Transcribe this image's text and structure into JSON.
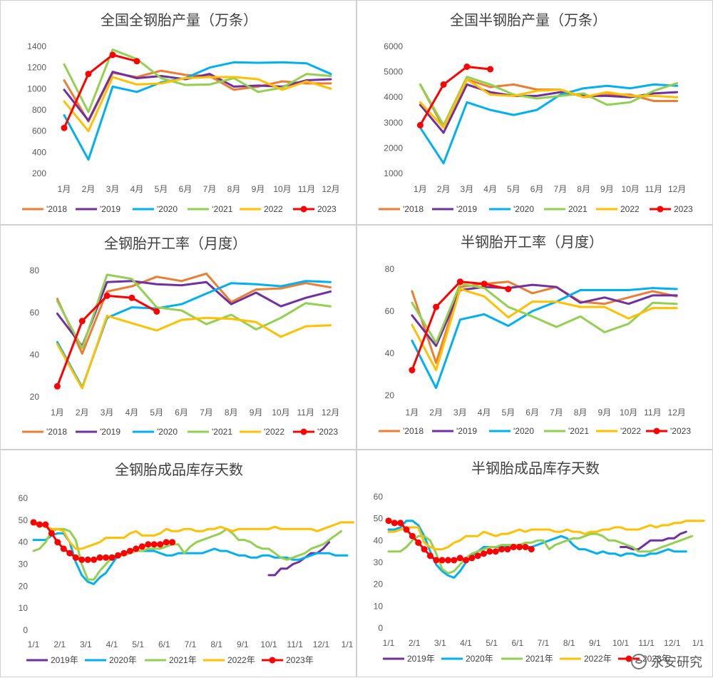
{
  "watermark": {
    "text": "永安研究",
    "icon": "wechat-icon"
  },
  "colors": {
    "2018": "#ED7D31",
    "2019": "#7030A0",
    "2020": "#00B0F0",
    "2021": "#92D050",
    "2022": "#FFC000",
    "2023": "#FF0000"
  },
  "chart_data": [
    {
      "id": "c1",
      "type": "line",
      "title": "全国全钢胎产量（万条）",
      "categories": [
        "1月",
        "2月",
        "3月",
        "4月",
        "5月",
        "6月",
        "7月",
        "8月",
        "9月",
        "10月",
        "11月",
        "12月"
      ],
      "ylim": [
        200,
        1400
      ],
      "yticks": [
        200,
        400,
        600,
        800,
        1000,
        1200,
        1400
      ],
      "legend_position": "bottom",
      "series": [
        {
          "name": "'2018",
          "key": "2018",
          "values": [
            1080,
            690,
            1150,
            1110,
            1170,
            1130,
            1120,
            990,
            1020,
            1070,
            1050,
            1050
          ]
        },
        {
          "name": "'2019",
          "key": "2019",
          "values": [
            990,
            700,
            1160,
            1100,
            1120,
            1090,
            1140,
            1020,
            1030,
            1020,
            1080,
            1090
          ]
        },
        {
          "name": "'2020",
          "key": "2020",
          "values": [
            750,
            330,
            1020,
            970,
            1060,
            1100,
            1200,
            1250,
            1245,
            1250,
            1240,
            1140
          ]
        },
        {
          "name": "‘2021",
          "key": "2021",
          "values": [
            1230,
            780,
            1370,
            1280,
            1100,
            1035,
            1040,
            1100,
            970,
            1010,
            1140,
            1120
          ]
        },
        {
          "name": "2022",
          "key": "2022",
          "values": [
            880,
            600,
            1110,
            1040,
            1050,
            1100,
            1110,
            1110,
            1090,
            990,
            1070,
            1000
          ]
        },
        {
          "name": "2023",
          "key": "2023",
          "markers": true,
          "values": [
            630,
            1140,
            1320,
            1260,
            null,
            null,
            null,
            null,
            null,
            null,
            null,
            null
          ]
        }
      ]
    },
    {
      "id": "c2",
      "type": "line",
      "title": "全国半钢胎产量（万条）",
      "categories": [
        "1月",
        "2月",
        "3月",
        "4月",
        "5月",
        "6月",
        "7月",
        "8月",
        "9月",
        "10月",
        "11月",
        "12月"
      ],
      "ylim": [
        1000,
        6000
      ],
      "yticks": [
        1000,
        2000,
        3000,
        4000,
        5000,
        6000
      ],
      "legend_position": "bottom",
      "series": [
        {
          "name": "'2018",
          "key": "2018",
          "values": [
            4500,
            2800,
            4700,
            4400,
            4500,
            4300,
            4300,
            4000,
            4100,
            4100,
            3850,
            3850
          ]
        },
        {
          "name": "'2019",
          "key": "2019",
          "values": [
            3700,
            2600,
            4500,
            4200,
            4050,
            4050,
            4200,
            4050,
            4050,
            4000,
            4150,
            4200
          ]
        },
        {
          "name": "'2020",
          "key": "2020",
          "values": [
            2800,
            1400,
            3800,
            3500,
            3300,
            3500,
            4100,
            4350,
            4450,
            4350,
            4500,
            4450
          ]
        },
        {
          "name": "2021",
          "key": "2021",
          "values": [
            4500,
            2900,
            4800,
            4500,
            4100,
            3950,
            4050,
            4150,
            3700,
            3800,
            4250,
            4550
          ]
        },
        {
          "name": "2022",
          "key": "2022",
          "values": [
            3800,
            2800,
            4700,
            4100,
            4050,
            4250,
            4300,
            4000,
            4200,
            4050,
            4050,
            4000
          ]
        },
        {
          "name": "2023",
          "key": "2023",
          "markers": true,
          "values": [
            2900,
            4500,
            5200,
            5100,
            null,
            null,
            null,
            null,
            null,
            null,
            null,
            null
          ]
        }
      ]
    },
    {
      "id": "c3",
      "type": "line",
      "title": "全钢胎开工率（月度）",
      "categories": [
        "1月",
        "2月",
        "3月",
        "4月",
        "5月",
        "6月",
        "7月",
        "8月",
        "9月",
        "10月",
        "11月",
        "12月"
      ],
      "ylim": [
        20,
        80
      ],
      "yticks": [
        20,
        40,
        60,
        80
      ],
      "legend_position": "bottom",
      "series": [
        {
          "name": "'2018",
          "key": "2018",
          "values": [
            66.5,
            40.5,
            70,
            72.5,
            77,
            75,
            78.5,
            65,
            71,
            71.5,
            74,
            72
          ]
        },
        {
          "name": "'2019",
          "key": "2019",
          "values": [
            59.5,
            44,
            74.5,
            75,
            73.5,
            73,
            74.5,
            64,
            69.5,
            63,
            67,
            70
          ]
        },
        {
          "name": "'2020",
          "key": "2020",
          "values": [
            46,
            24.5,
            57.5,
            62.5,
            62,
            64,
            69,
            74,
            73.5,
            72.5,
            75,
            74.5
          ]
        },
        {
          "name": "'2021",
          "key": "2021",
          "values": [
            65.5,
            43,
            78,
            76,
            62.5,
            61,
            54.5,
            59,
            52,
            57.5,
            64.5,
            63
          ]
        },
        {
          "name": "'2022",
          "key": "2022",
          "values": [
            45,
            24,
            58.5,
            55,
            51.5,
            56.5,
            57.5,
            57,
            55.5,
            48.5,
            53.5,
            54
          ]
        },
        {
          "name": "'2023",
          "key": "2023",
          "markers": true,
          "values": [
            25,
            56,
            68,
            67,
            60.5,
            null,
            null,
            null,
            null,
            null,
            null,
            null
          ]
        }
      ]
    },
    {
      "id": "c4",
      "type": "line",
      "title": "半钢胎开工率（月度）",
      "categories": [
        "1月",
        "2月",
        "3月",
        "4月",
        "5月",
        "6月",
        "7月",
        "8月",
        "9月",
        "10月",
        "11月",
        "12月"
      ],
      "ylim": [
        20,
        80
      ],
      "yticks": [
        20,
        40,
        60,
        80
      ],
      "legend_position": "bottom",
      "series": [
        {
          "name": "'2018",
          "key": "2018",
          "values": [
            69.5,
            35.5,
            71.5,
            73,
            74,
            68.5,
            71.5,
            64.5,
            63.5,
            66.5,
            69.5,
            67
          ]
        },
        {
          "name": "'2019",
          "key": "2019",
          "values": [
            58,
            43.5,
            70,
            71.5,
            71,
            72.5,
            71.5,
            64,
            66.5,
            63.5,
            67.5,
            67.5
          ]
        },
        {
          "name": "'2020",
          "key": "2020",
          "values": [
            46,
            23.5,
            56,
            58.5,
            53,
            60,
            64.5,
            70,
            70,
            70,
            71,
            70.5
          ]
        },
        {
          "name": "'2021",
          "key": "2021",
          "values": [
            64,
            45,
            73,
            71,
            62,
            57.5,
            52.5,
            57.5,
            50,
            54,
            64,
            63.5
          ]
        },
        {
          "name": "'2022",
          "key": "2022",
          "values": [
            53.5,
            32,
            70.5,
            67,
            57,
            64.5,
            64.5,
            62,
            62,
            56.5,
            61.5,
            61.5
          ]
        },
        {
          "name": "'2023",
          "key": "2023",
          "markers": true,
          "values": [
            32,
            62,
            74,
            73,
            70.5,
            null,
            null,
            null,
            null,
            null,
            null,
            null
          ]
        }
      ]
    },
    {
      "id": "c5",
      "type": "line",
      "title": "全钢胎成品库存天数",
      "x_axis": "date",
      "x_ticks": [
        "1/1",
        "2/1",
        "3/1",
        "4/1",
        "5/1",
        "6/1",
        "7/1",
        "8/1",
        "9/1",
        "10/1",
        "11/1",
        "12/1",
        "1/1"
      ],
      "ylim": [
        0,
        60
      ],
      "yticks": [
        0,
        10,
        20,
        30,
        40,
        50,
        60
      ],
      "legend_position": "bottom",
      "series": [
        {
          "name": "2019年",
          "key": "2019",
          "x_start": "10/1",
          "values": [
            25,
            25,
            28,
            28,
            30,
            31,
            33,
            35,
            35,
            37,
            40
          ]
        },
        {
          "name": "2020年",
          "key": "2020",
          "x_start": "1/1",
          "values": [
            41,
            41,
            41,
            43,
            44,
            44,
            40,
            31,
            25,
            22,
            21,
            24,
            26,
            30,
            34,
            35,
            35,
            36,
            36,
            36,
            36,
            35,
            34,
            34,
            35,
            35,
            35,
            35,
            35,
            36,
            37,
            36,
            36,
            35,
            34,
            34,
            33,
            33,
            34,
            34,
            33,
            33,
            33,
            32,
            32,
            33,
            34,
            35,
            35,
            35,
            34,
            34,
            34
          ]
        },
        {
          "name": "2021年",
          "key": "2021",
          "x_start": "1/1",
          "values": [
            36,
            37,
            40,
            45,
            46,
            46,
            45,
            41,
            30,
            23,
            23,
            27,
            30,
            33,
            34,
            34,
            35,
            36,
            36,
            37,
            37,
            37,
            38,
            39,
            39,
            35,
            38,
            40,
            41,
            42,
            43,
            44,
            46,
            44,
            41,
            41,
            40,
            38,
            37,
            37,
            35,
            33,
            32,
            33,
            34,
            35,
            37,
            38,
            39,
            41,
            43,
            45
          ]
        },
        {
          "name": "2022年",
          "key": "2022",
          "x_start": "1/1",
          "values": [
            48,
            48,
            47,
            46,
            46,
            45,
            40,
            37,
            37,
            38,
            39,
            40,
            42,
            42,
            42,
            42,
            44,
            45,
            43,
            43,
            43,
            44,
            46,
            45,
            45,
            46,
            46,
            45,
            45,
            46,
            46,
            47,
            46,
            45,
            46,
            46,
            46,
            46,
            46,
            46,
            47,
            46,
            46,
            46,
            46,
            46,
            46,
            45,
            46,
            47,
            48,
            49,
            49,
            49
          ]
        },
        {
          "name": "2023年",
          "key": "2023",
          "markers": true,
          "x_start": "1/1",
          "values": [
            49,
            48,
            48,
            44,
            40,
            37,
            35,
            33,
            32,
            32,
            32,
            33,
            33,
            33,
            34,
            35,
            36,
            37,
            38,
            39,
            39,
            39,
            40,
            40
          ]
        }
      ]
    },
    {
      "id": "c6",
      "type": "line",
      "title": "半钢胎成品库存天数",
      "x_axis": "date",
      "x_ticks": [
        "1/1",
        "2/1",
        "3/1",
        "4/1",
        "5/1",
        "6/1",
        "7/1",
        "8/1",
        "9/1",
        "10/1",
        "11/1",
        "12/1",
        "1/1"
      ],
      "ylim": [
        0,
        60
      ],
      "yticks": [
        0,
        10,
        20,
        30,
        40,
        50,
        60
      ],
      "legend_position": "bottom",
      "series": [
        {
          "name": "2019年",
          "key": "2019",
          "x_start": "10/1",
          "values": [
            37,
            37,
            36,
            36,
            38,
            40,
            40,
            40,
            41,
            41,
            43,
            44
          ]
        },
        {
          "name": "2020年",
          "key": "2020",
          "x_start": "1/1",
          "values": [
            45,
            45,
            46,
            49,
            49,
            47,
            42,
            35,
            29,
            26,
            24,
            23,
            26,
            30,
            33,
            35,
            37,
            37,
            37,
            37,
            37,
            38,
            38,
            37,
            37,
            38,
            39,
            40,
            41,
            42,
            41,
            38,
            36,
            36,
            35,
            34,
            35,
            34,
            34,
            33,
            34,
            34,
            33,
            33,
            34,
            34,
            35,
            36,
            35,
            35,
            35
          ]
        },
        {
          "name": "2021年",
          "key": "2021",
          "x_start": "1/1",
          "values": [
            35,
            35,
            35,
            37,
            40,
            42,
            42,
            40,
            34,
            27,
            25,
            26,
            29,
            32,
            34,
            35,
            36,
            37,
            37,
            38,
            38,
            38,
            38,
            39,
            39,
            40,
            40,
            36,
            38,
            39,
            40,
            41,
            41,
            42,
            43,
            43,
            42,
            40,
            40,
            39,
            38,
            37,
            35,
            35,
            35,
            36,
            37,
            38,
            39,
            40,
            41,
            42
          ]
        },
        {
          "name": "2022年",
          "key": "2022",
          "x_start": "1/1",
          "values": [
            44,
            44,
            45,
            46,
            46,
            46,
            39,
            37,
            36,
            36,
            37,
            39,
            40,
            42,
            42,
            42,
            44,
            43,
            42,
            43,
            43,
            44,
            45,
            44,
            45,
            45,
            45,
            45,
            44,
            44,
            45,
            44,
            44,
            43,
            44,
            44,
            45,
            45,
            46,
            46,
            45,
            45,
            45,
            46,
            47,
            46,
            47,
            47,
            48,
            48,
            49,
            49,
            49,
            49
          ]
        },
        {
          "name": "2023年",
          "key": "2023",
          "markers": true,
          "x_start": "1/1",
          "values": [
            49,
            48,
            48,
            45,
            42,
            39,
            36,
            33,
            31,
            31,
            31,
            31,
            32,
            31,
            32,
            33,
            34,
            35,
            35,
            36,
            36,
            37,
            37,
            37,
            36
          ]
        }
      ]
    }
  ]
}
